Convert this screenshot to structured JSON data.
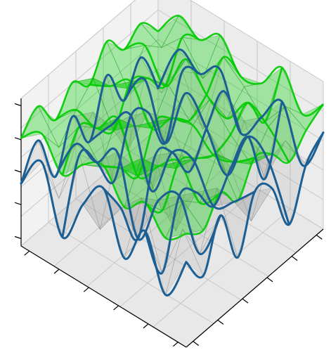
{
  "chart_data": {
    "type": "surface3d",
    "title": "",
    "xlabel": "",
    "ylabel": "",
    "zlabel": "",
    "grid": true,
    "legend": "none",
    "x": [
      0,
      1,
      2,
      3,
      4,
      5,
      6,
      7,
      8
    ],
    "y": [
      0,
      1,
      2,
      3,
      4,
      5,
      6,
      7,
      8
    ],
    "z_range": [
      -1.2,
      1.4
    ],
    "series": [
      {
        "kind": "wireframe",
        "color": "#1b5f94",
        "z": [
          [
            -0.1,
            0.5,
            -0.6,
            0.2,
            0.7,
            -0.3,
            0.4,
            -0.5,
            0.3
          ],
          [
            0.4,
            -0.4,
            0.6,
            -0.5,
            0.1,
            0.5,
            -0.6,
            0.4,
            -0.2
          ],
          [
            -0.5,
            0.3,
            0.2,
            0.6,
            -0.7,
            0.2,
            0.5,
            -0.3,
            0.6
          ],
          [
            0.3,
            0.6,
            -0.4,
            0.1,
            0.5,
            -0.6,
            0.3,
            0.6,
            -0.4
          ],
          [
            -0.4,
            0.1,
            0.5,
            -0.6,
            0.3,
            0.4,
            -0.2,
            0.1,
            0.5
          ],
          [
            0.5,
            -0.6,
            0.3,
            0.4,
            -0.3,
            0.6,
            0.2,
            -0.5,
            0.3
          ],
          [
            -0.2,
            0.4,
            -0.5,
            0.6,
            0.2,
            -0.4,
            0.5,
            0.3,
            -0.6
          ],
          [
            0.3,
            -0.1,
            0.5,
            -0.3,
            0.6,
            0.3,
            -0.5,
            0.4,
            0.2
          ],
          [
            -0.5,
            0.4,
            0.2,
            0.5,
            -0.4,
            0.1,
            0.6,
            -0.3,
            0.5
          ]
        ]
      },
      {
        "kind": "surface",
        "color": "#00cc00",
        "z": [
          [
            0.7,
            1.0,
            0.5,
            0.9,
            1.1,
            0.6,
            0.9,
            0.5,
            0.8
          ],
          [
            1.0,
            0.5,
            1.1,
            0.6,
            0.8,
            1.2,
            0.5,
            0.9,
            0.6
          ],
          [
            0.5,
            0.9,
            0.8,
            1.2,
            0.4,
            0.8,
            1.1,
            0.6,
            1.0
          ],
          [
            0.9,
            1.2,
            0.5,
            0.8,
            1.1,
            0.5,
            0.9,
            1.2,
            0.6
          ],
          [
            0.6,
            0.8,
            1.1,
            0.5,
            0.9,
            1.0,
            0.7,
            0.8,
            1.1
          ],
          [
            1.1,
            0.5,
            0.9,
            1.0,
            0.6,
            1.2,
            0.8,
            0.5,
            0.9
          ],
          [
            0.7,
            1.0,
            0.5,
            1.2,
            0.8,
            0.6,
            1.1,
            0.9,
            0.5
          ],
          [
            0.9,
            0.7,
            1.1,
            0.6,
            1.2,
            0.9,
            0.5,
            1.0,
            0.8
          ],
          [
            0.5,
            1.0,
            0.8,
            1.1,
            0.6,
            0.7,
            1.2,
            0.6,
            1.0
          ]
        ]
      }
    ]
  }
}
